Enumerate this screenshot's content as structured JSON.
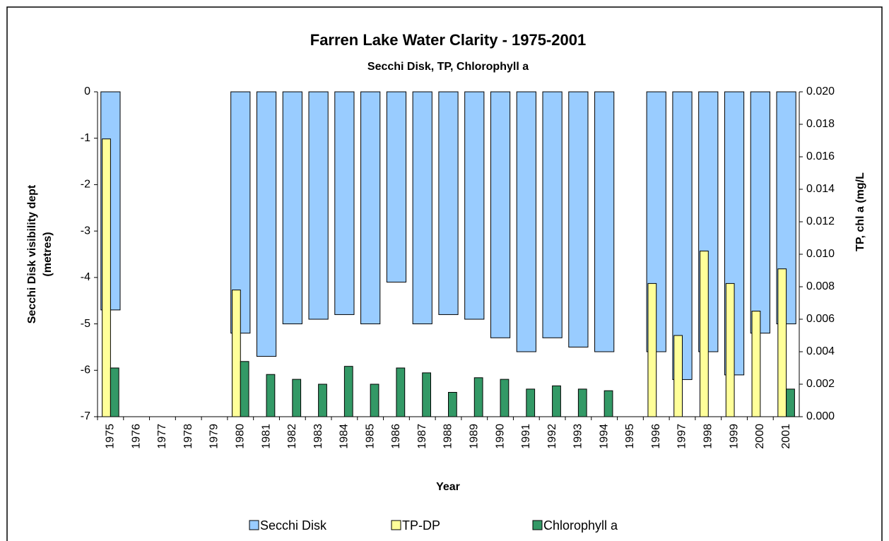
{
  "chart_data": {
    "type": "bar",
    "title": "Farren Lake Water Clarity - 1975-2001",
    "subtitle": "Secchi Disk, TP, Chlorophyll a",
    "x_label": "Year",
    "y_label": [
      "Secchi Disk visibility dept",
      "(metres)"
    ],
    "y2_label": "TP, chl a (mg/L",
    "categories": [
      "1975",
      "1976",
      "1977",
      "1978",
      "1979",
      "1980",
      "1981",
      "1982",
      "1983",
      "1984",
      "1985",
      "1986",
      "1987",
      "1988",
      "1989",
      "1990",
      "1991",
      "1992",
      "1993",
      "1994",
      "1995",
      "1996",
      "1997",
      "1998",
      "1999",
      "2000",
      "2001"
    ],
    "series": [
      {
        "name": "Secchi Disk",
        "color": "#99ccff",
        "axis": "y",
        "values": [
          -4.7,
          null,
          null,
          null,
          null,
          -5.2,
          -5.7,
          -5.0,
          -4.9,
          -4.8,
          -5.0,
          -4.1,
          -5.0,
          -4.8,
          -4.9,
          -5.3,
          -5.6,
          -5.3,
          -5.5,
          -5.6,
          null,
          -5.6,
          -6.2,
          -5.6,
          -6.1,
          -5.2,
          -5.0
        ]
      },
      {
        "name": "TP-DP",
        "color": "#ffff99",
        "axis": "y2",
        "values": [
          0.0171,
          null,
          null,
          null,
          null,
          0.0078,
          null,
          null,
          null,
          null,
          null,
          null,
          null,
          null,
          null,
          null,
          null,
          null,
          null,
          null,
          null,
          0.0082,
          0.005,
          0.0102,
          0.0082,
          0.0065,
          0.0091
        ]
      },
      {
        "name": "Chlorophyll a",
        "color": "#339966",
        "axis": "y2",
        "values": [
          0.003,
          null,
          null,
          null,
          null,
          0.0034,
          0.0026,
          0.0023,
          0.002,
          0.0031,
          0.002,
          0.003,
          0.0027,
          0.0015,
          0.0024,
          0.0023,
          0.0017,
          0.0019,
          0.0017,
          0.0016,
          null,
          null,
          null,
          null,
          null,
          null,
          0.0017
        ]
      }
    ],
    "ylim": [
      -7,
      0
    ],
    "yticks": [
      0,
      -1,
      -2,
      -3,
      -4,
      -5,
      -6,
      -7
    ],
    "y2lim": [
      0,
      0.02
    ],
    "y2ticks": [
      {
        "value": 0,
        "label": "0.000"
      },
      {
        "value": 0.002,
        "label": "0.002"
      },
      {
        "value": 0.004,
        "label": "0.004"
      },
      {
        "value": 0.006,
        "label": "0.006"
      },
      {
        "value": 0.008,
        "label": "0.008"
      },
      {
        "value": 0.01,
        "label": "0.010"
      },
      {
        "value": 0.012,
        "label": "0.012"
      },
      {
        "value": 0.014,
        "label": "0.014"
      },
      {
        "value": 0.016,
        "label": "0.016"
      },
      {
        "value": 0.018,
        "label": "0.018"
      },
      {
        "value": 0.02,
        "label": "0.020"
      }
    ],
    "grid": false,
    "legend": "bottom"
  }
}
